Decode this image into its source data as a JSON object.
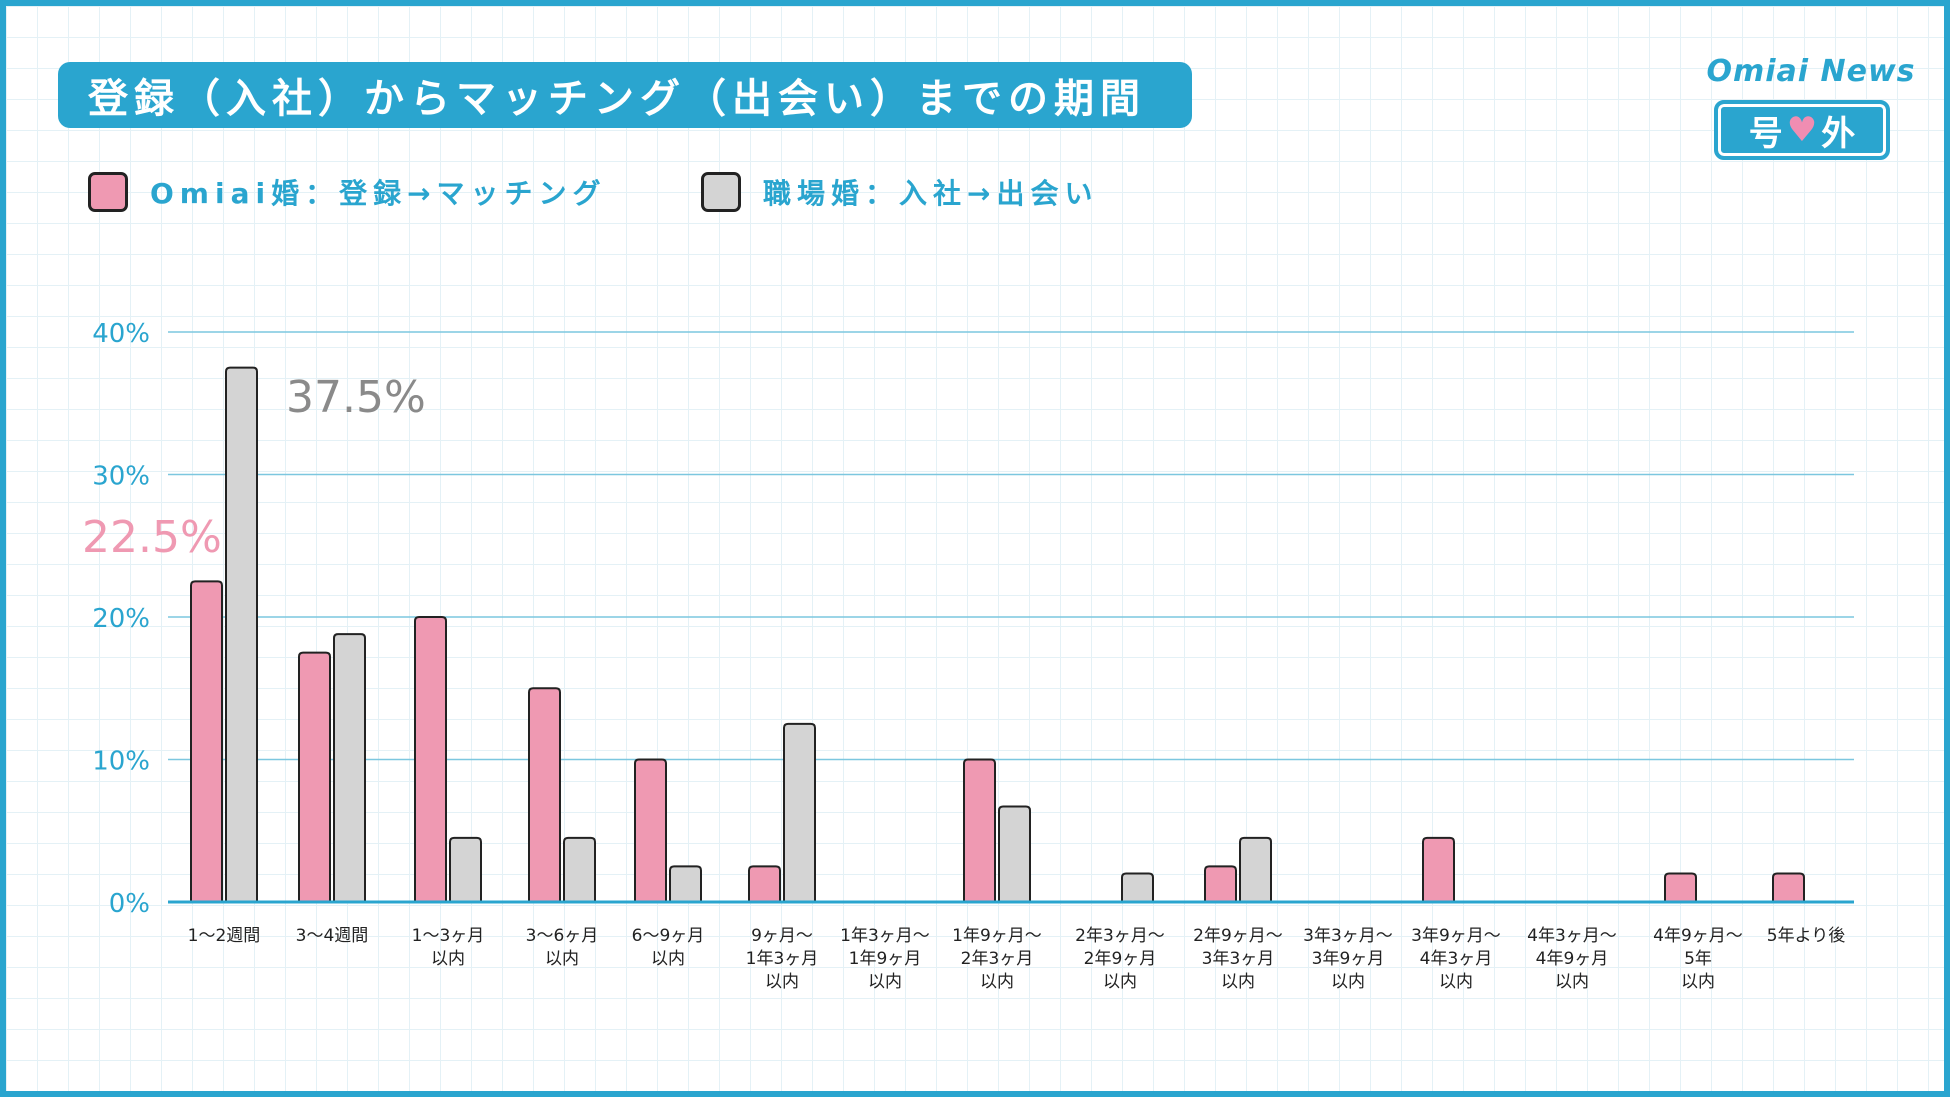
{
  "header": {
    "title": "登録（入社）からマッチング（出会い）までの期間",
    "brand_name": "Omiai News",
    "brand_badge_left": "号",
    "brand_badge_right": "外"
  },
  "colors": {
    "accent": "#2aa5cf",
    "omiai": "#ef99b2",
    "workplace": "#d4d4d4",
    "omiai_label": "#ef99b2",
    "workplace_label": "#8a8a8a"
  },
  "chart_data": {
    "type": "bar",
    "ylim": [
      0,
      40
    ],
    "yticks": [
      {
        "value": 0,
        "label": "0%"
      },
      {
        "value": 10,
        "label": "10%"
      },
      {
        "value": 20,
        "label": "20%"
      },
      {
        "value": 30,
        "label": "30%"
      },
      {
        "value": 40,
        "label": "40%"
      }
    ],
    "grid": true,
    "legend": "top-left",
    "categories": [
      [
        "1〜2週間"
      ],
      [
        "3〜4週間"
      ],
      [
        "1〜3ヶ月",
        "以内"
      ],
      [
        "3〜6ヶ月",
        "以内"
      ],
      [
        "6〜9ヶ月",
        "以内"
      ],
      [
        "9ヶ月〜",
        "1年3ヶ月",
        "以内"
      ],
      [
        "1年3ヶ月〜",
        "1年9ヶ月",
        "以内"
      ],
      [
        "1年9ヶ月〜",
        "2年3ヶ月",
        "以内"
      ],
      [
        "2年3ヶ月〜",
        "2年9ヶ月",
        "以内"
      ],
      [
        "2年9ヶ月〜",
        "3年3ヶ月",
        "以内"
      ],
      [
        "3年3ヶ月〜",
        "3年9ヶ月",
        "以内"
      ],
      [
        "3年9ヶ月〜",
        "4年3ヶ月",
        "以内"
      ],
      [
        "4年3ヶ月〜",
        "4年9ヶ月",
        "以内"
      ],
      [
        "4年9ヶ月〜",
        "5年",
        "以内"
      ],
      [
        "5年より後"
      ]
    ],
    "series": [
      {
        "name": "Omiai婚：登録→マッチング",
        "values": [
          22.5,
          17.5,
          20.0,
          15.0,
          10.0,
          2.5,
          0,
          10.0,
          0,
          2.5,
          0,
          4.5,
          0,
          2.0,
          2.0
        ]
      },
      {
        "name": "職場婚：入社→出会い",
        "values": [
          37.5,
          18.8,
          4.5,
          4.5,
          2.5,
          12.5,
          0,
          6.7,
          2.0,
          4.5,
          0,
          0,
          0,
          0,
          0
        ]
      }
    ],
    "annotations": [
      {
        "series": 0,
        "category": 0,
        "label": "22.5%"
      },
      {
        "series": 1,
        "category": 0,
        "label": "37.5%"
      }
    ]
  }
}
